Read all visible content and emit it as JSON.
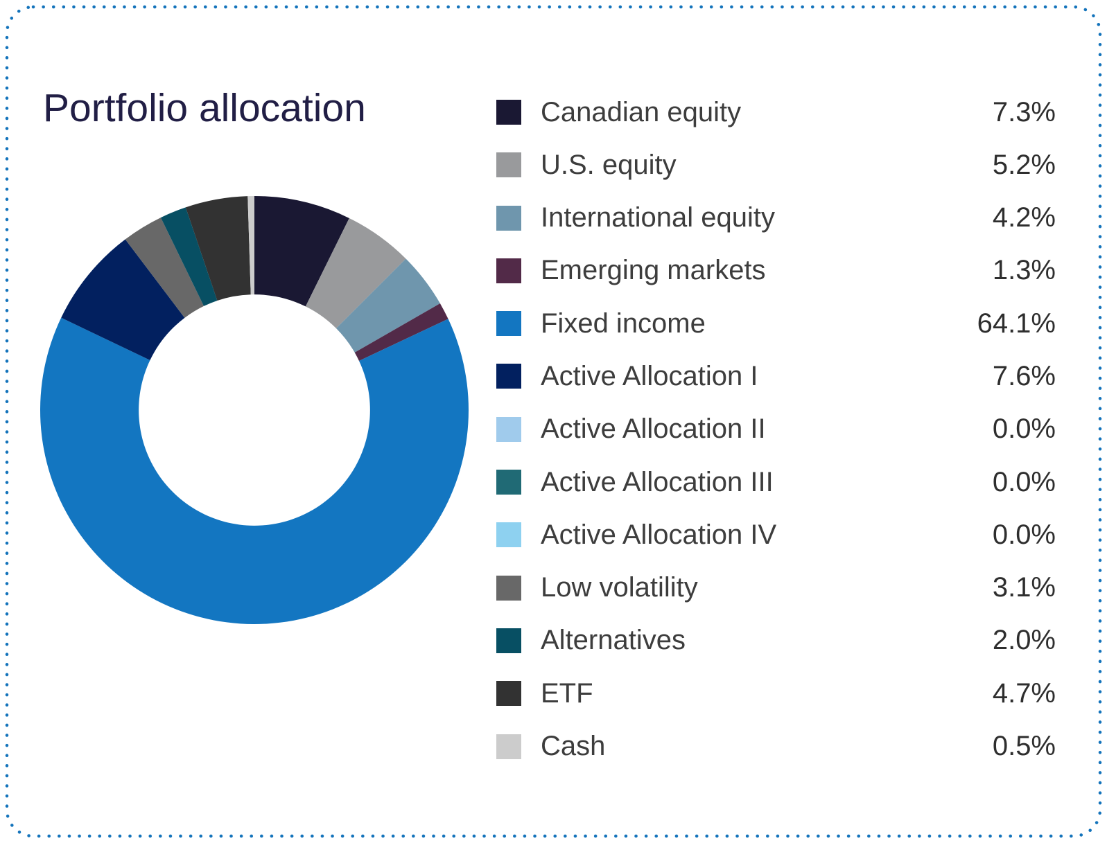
{
  "title": "Portfolio allocation",
  "colors": {
    "border": "#1373BB",
    "title": "#211E45",
    "label": "#3D3D3D",
    "value": "#2E2E2E",
    "background": "#FFFFFF"
  },
  "chart_data": {
    "type": "pie",
    "variant": "donut",
    "title": "Portfolio allocation",
    "legend_position": "right",
    "start_angle_deg": 0,
    "direction": "clockwise",
    "inner_radius_ratio": 0.54,
    "categories": [
      "Canadian equity",
      "U.S. equity",
      "International equity",
      "Emerging markets",
      "Fixed income",
      "Active Allocation I",
      "Active Allocation II",
      "Active Allocation III",
      "Active Allocation IV",
      "Low volatility",
      "Alternatives",
      "ETF",
      "Cash"
    ],
    "values": [
      7.3,
      5.2,
      4.2,
      1.3,
      64.1,
      7.6,
      0.0,
      0.0,
      0.0,
      3.1,
      2.0,
      4.7,
      0.5
    ],
    "value_labels": [
      "7.3%",
      "5.2%",
      "4.2%",
      "1.3%",
      "64.1%",
      "7.6%",
      "0.0%",
      "0.0%",
      "0.0%",
      "3.1%",
      "2.0%",
      "4.7%",
      "0.5%"
    ],
    "colors": [
      "#1A1833",
      "#999A9C",
      "#6F96AD",
      "#522A48",
      "#1376C1",
      "#02205F",
      "#A0CBEC",
      "#206A75",
      "#8ED1F0",
      "#686868",
      "#074F63",
      "#323232",
      "#CCCCCC"
    ]
  },
  "legend": {
    "items": [
      {
        "label": "Canadian equity",
        "value": "7.3%",
        "color": "#1A1833"
      },
      {
        "label": "U.S. equity",
        "value": "5.2%",
        "color": "#999A9C"
      },
      {
        "label": "International equity",
        "value": "4.2%",
        "color": "#6F96AD"
      },
      {
        "label": "Emerging markets",
        "value": "1.3%",
        "color": "#522A48"
      },
      {
        "label": "Fixed income",
        "value": "64.1%",
        "color": "#1376C1"
      },
      {
        "label": "Active Allocation I",
        "value": "7.6%",
        "color": "#02205F"
      },
      {
        "label": "Active Allocation II",
        "value": "0.0%",
        "color": "#A0CBEC"
      },
      {
        "label": "Active Allocation III",
        "value": "0.0%",
        "color": "#206A75"
      },
      {
        "label": "Active Allocation IV",
        "value": "0.0%",
        "color": "#8ED1F0"
      },
      {
        "label": "Low volatility",
        "value": "3.1%",
        "color": "#686868"
      },
      {
        "label": "Alternatives",
        "value": "2.0%",
        "color": "#074F63"
      },
      {
        "label": "ETF",
        "value": "4.7%",
        "color": "#323232"
      },
      {
        "label": "Cash",
        "value": "0.5%",
        "color": "#CCCCCC"
      }
    ]
  }
}
